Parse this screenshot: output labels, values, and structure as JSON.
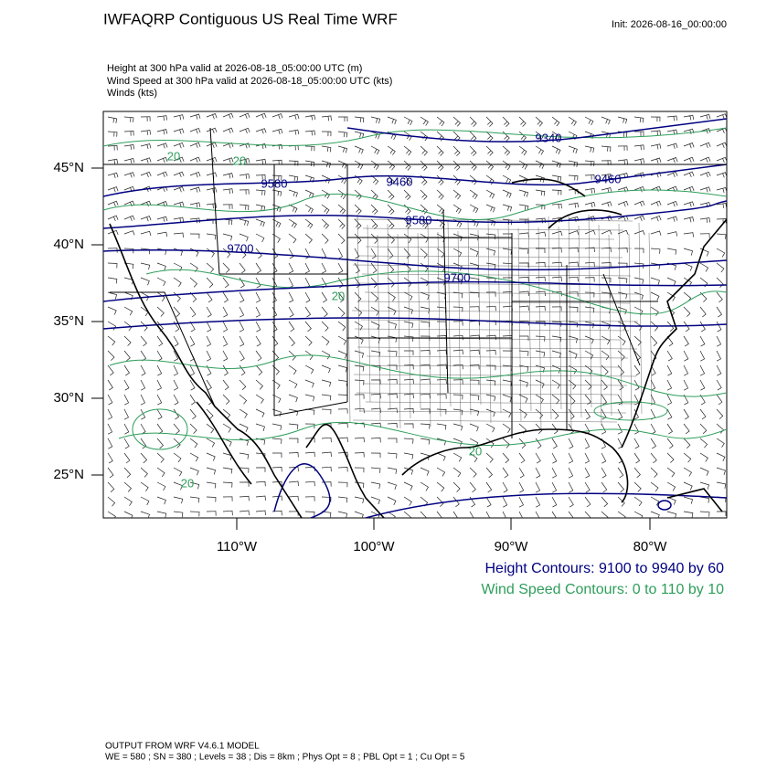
{
  "header": {
    "title": "IWFAQRP Contiguous US Real Time WRF",
    "init": "Init: 2026-08-16_00:00:00"
  },
  "fields": [
    "Height at 300 hPa valid at 2026-08-18_05:00:00 UTC   (m)",
    "Wind Speed at 300 hPa valid at 2026-08-18_05:00:00 UTC   (kts)",
    "Winds   (kts)"
  ],
  "map": {
    "lat_labels": [
      "45°N",
      "40°N",
      "35°N",
      "30°N",
      "25°N"
    ],
    "lon_labels": [
      "110°W",
      "100°W",
      "90°W",
      "80°W"
    ],
    "height_labels": [
      "9340",
      "9580",
      "9460",
      "9460",
      "9580",
      "9700",
      "9700"
    ],
    "speed_labels": [
      "20",
      "20",
      "20",
      "20",
      "20"
    ]
  },
  "legend": [
    "Height Contours: 9100 to 9940 by 60",
    "Wind Speed Contours: 0 to 110 by 10"
  ],
  "footer": [
    "OUTPUT FROM WRF V4.6.1 MODEL",
    "WE = 580 ; SN = 380 ; Levels = 38 ; Dis = 8km ; Phys Opt = 8 ; PBL Opt = 1 ; Cu Opt = 5"
  ]
}
